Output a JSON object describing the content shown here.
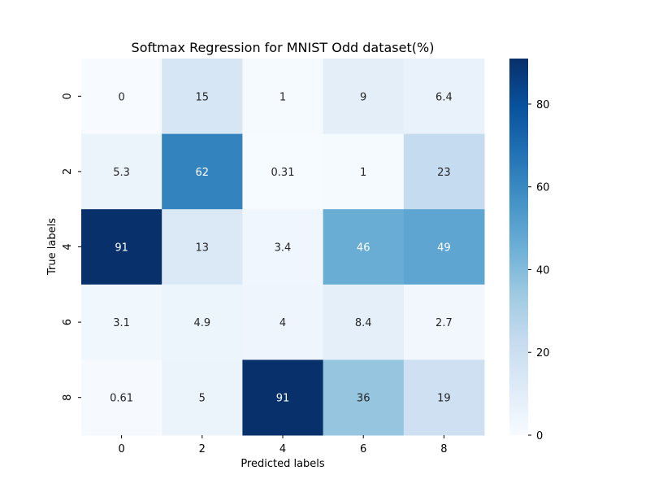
{
  "chart_data": {
    "type": "heatmap",
    "title": "Softmax Regression for MNIST Odd dataset(%)",
    "xlabel": "Predicted labels",
    "ylabel": "True labels",
    "x_categories": [
      "0",
      "2",
      "4",
      "6",
      "8"
    ],
    "y_categories": [
      "0",
      "2",
      "4",
      "6",
      "8"
    ],
    "values": [
      [
        0,
        15,
        1,
        9,
        6.4
      ],
      [
        5.3,
        62,
        0.31,
        1,
        23
      ],
      [
        91,
        13,
        3.4,
        46,
        49
      ],
      [
        3.1,
        4.9,
        4,
        8.4,
        2.7
      ],
      [
        0.61,
        5,
        91,
        36,
        19
      ]
    ],
    "cell_labels": [
      [
        "0",
        "15",
        "1",
        "9",
        "6.4"
      ],
      [
        "5.3",
        "62",
        "0.31",
        "1",
        "23"
      ],
      [
        "91",
        "13",
        "3.4",
        "46",
        "49"
      ],
      [
        "3.1",
        "4.9",
        "4",
        "8.4",
        "2.7"
      ],
      [
        "0.61",
        "5",
        "91",
        "36",
        "19"
      ]
    ],
    "colormap": "Blues",
    "vmin": 0,
    "vmax": 91,
    "colorbar_ticks": [
      0,
      20,
      40,
      60,
      80
    ],
    "colorbar_tick_labels": [
      "0",
      "20",
      "40",
      "60",
      "80"
    ],
    "colors": {
      "low": "#f7fbff",
      "high": "#08306b"
    }
  }
}
